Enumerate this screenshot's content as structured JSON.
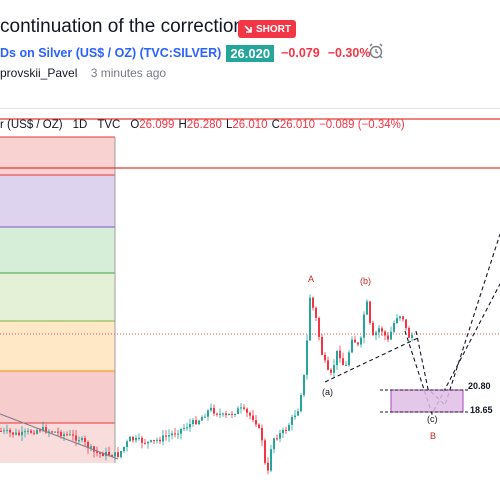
{
  "header": {
    "title": "continuation of the correction",
    "badge": "SHORT",
    "symbol": "Ds on Silver (US$ / OZ) (TVC:SILVER)",
    "price": "26.020",
    "change": "−0.079",
    "change_pct": "−0.30%",
    "author": "provskii_Pavel",
    "time_ago": "3 minutes ago"
  },
  "legend": {
    "symbol": "r (US$ / OZ)",
    "interval": "1D",
    "source": "TVC",
    "o_label": "O",
    "o": "26.099",
    "h_label": "H",
    "h": "26.280",
    "l_label": "L",
    "l": "26.010",
    "c_label": "C",
    "c": "26.010",
    "chg": "−0.089 (−0.34%)"
  },
  "waves": {
    "A": "A",
    "b": "(b)",
    "a": "(a)",
    "c": "(c)",
    "B": "B"
  },
  "levels": {
    "upper": "20.80",
    "lower": "18.65"
  },
  "colors": {
    "accent": "#2962ff",
    "up": "#26a69a",
    "down": "#f23645",
    "zone": "#e1bee7",
    "zone_border": "#9c27b0"
  }
}
